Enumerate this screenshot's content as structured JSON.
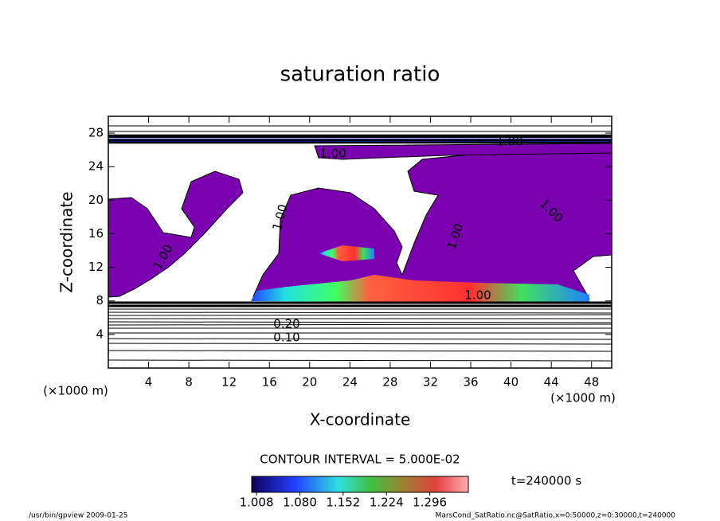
{
  "chart_data": {
    "type": "contour",
    "title": "saturation ratio",
    "x_label": "X-coordinate",
    "y_label": "Z-coordinate",
    "x_units": "(×1000 m)",
    "y_units": "(×1000 m)",
    "xlim": [
      0,
      50
    ],
    "ylim": [
      0,
      30
    ],
    "xticks": [
      4,
      8,
      12,
      16,
      20,
      24,
      28,
      32,
      36,
      40,
      44,
      48
    ],
    "yticks": [
      4,
      8,
      12,
      16,
      20,
      24,
      28
    ],
    "contour_labels": [
      "1.00",
      "1.00",
      "1.00",
      "1.00",
      "1.00",
      "1.00",
      "1.00",
      "0.20",
      "0.10"
    ],
    "contour_interval": "CONTOUR INTERVAL = 5.000E-02",
    "clim": [
      1.0,
      1.36
    ],
    "cticks": [
      1.008,
      {
        "value": 1.08,
        "label": "1.080"
      },
      1.152,
      1.224,
      1.296
    ],
    "time_label": "t=240000 s",
    "footer_left": "/usr/bin/gpview   2009-01-25",
    "footer_right": "MarsCond_SatRatio.nc@SatRatio,x=0:50000,z=0:30000,t=240000"
  }
}
